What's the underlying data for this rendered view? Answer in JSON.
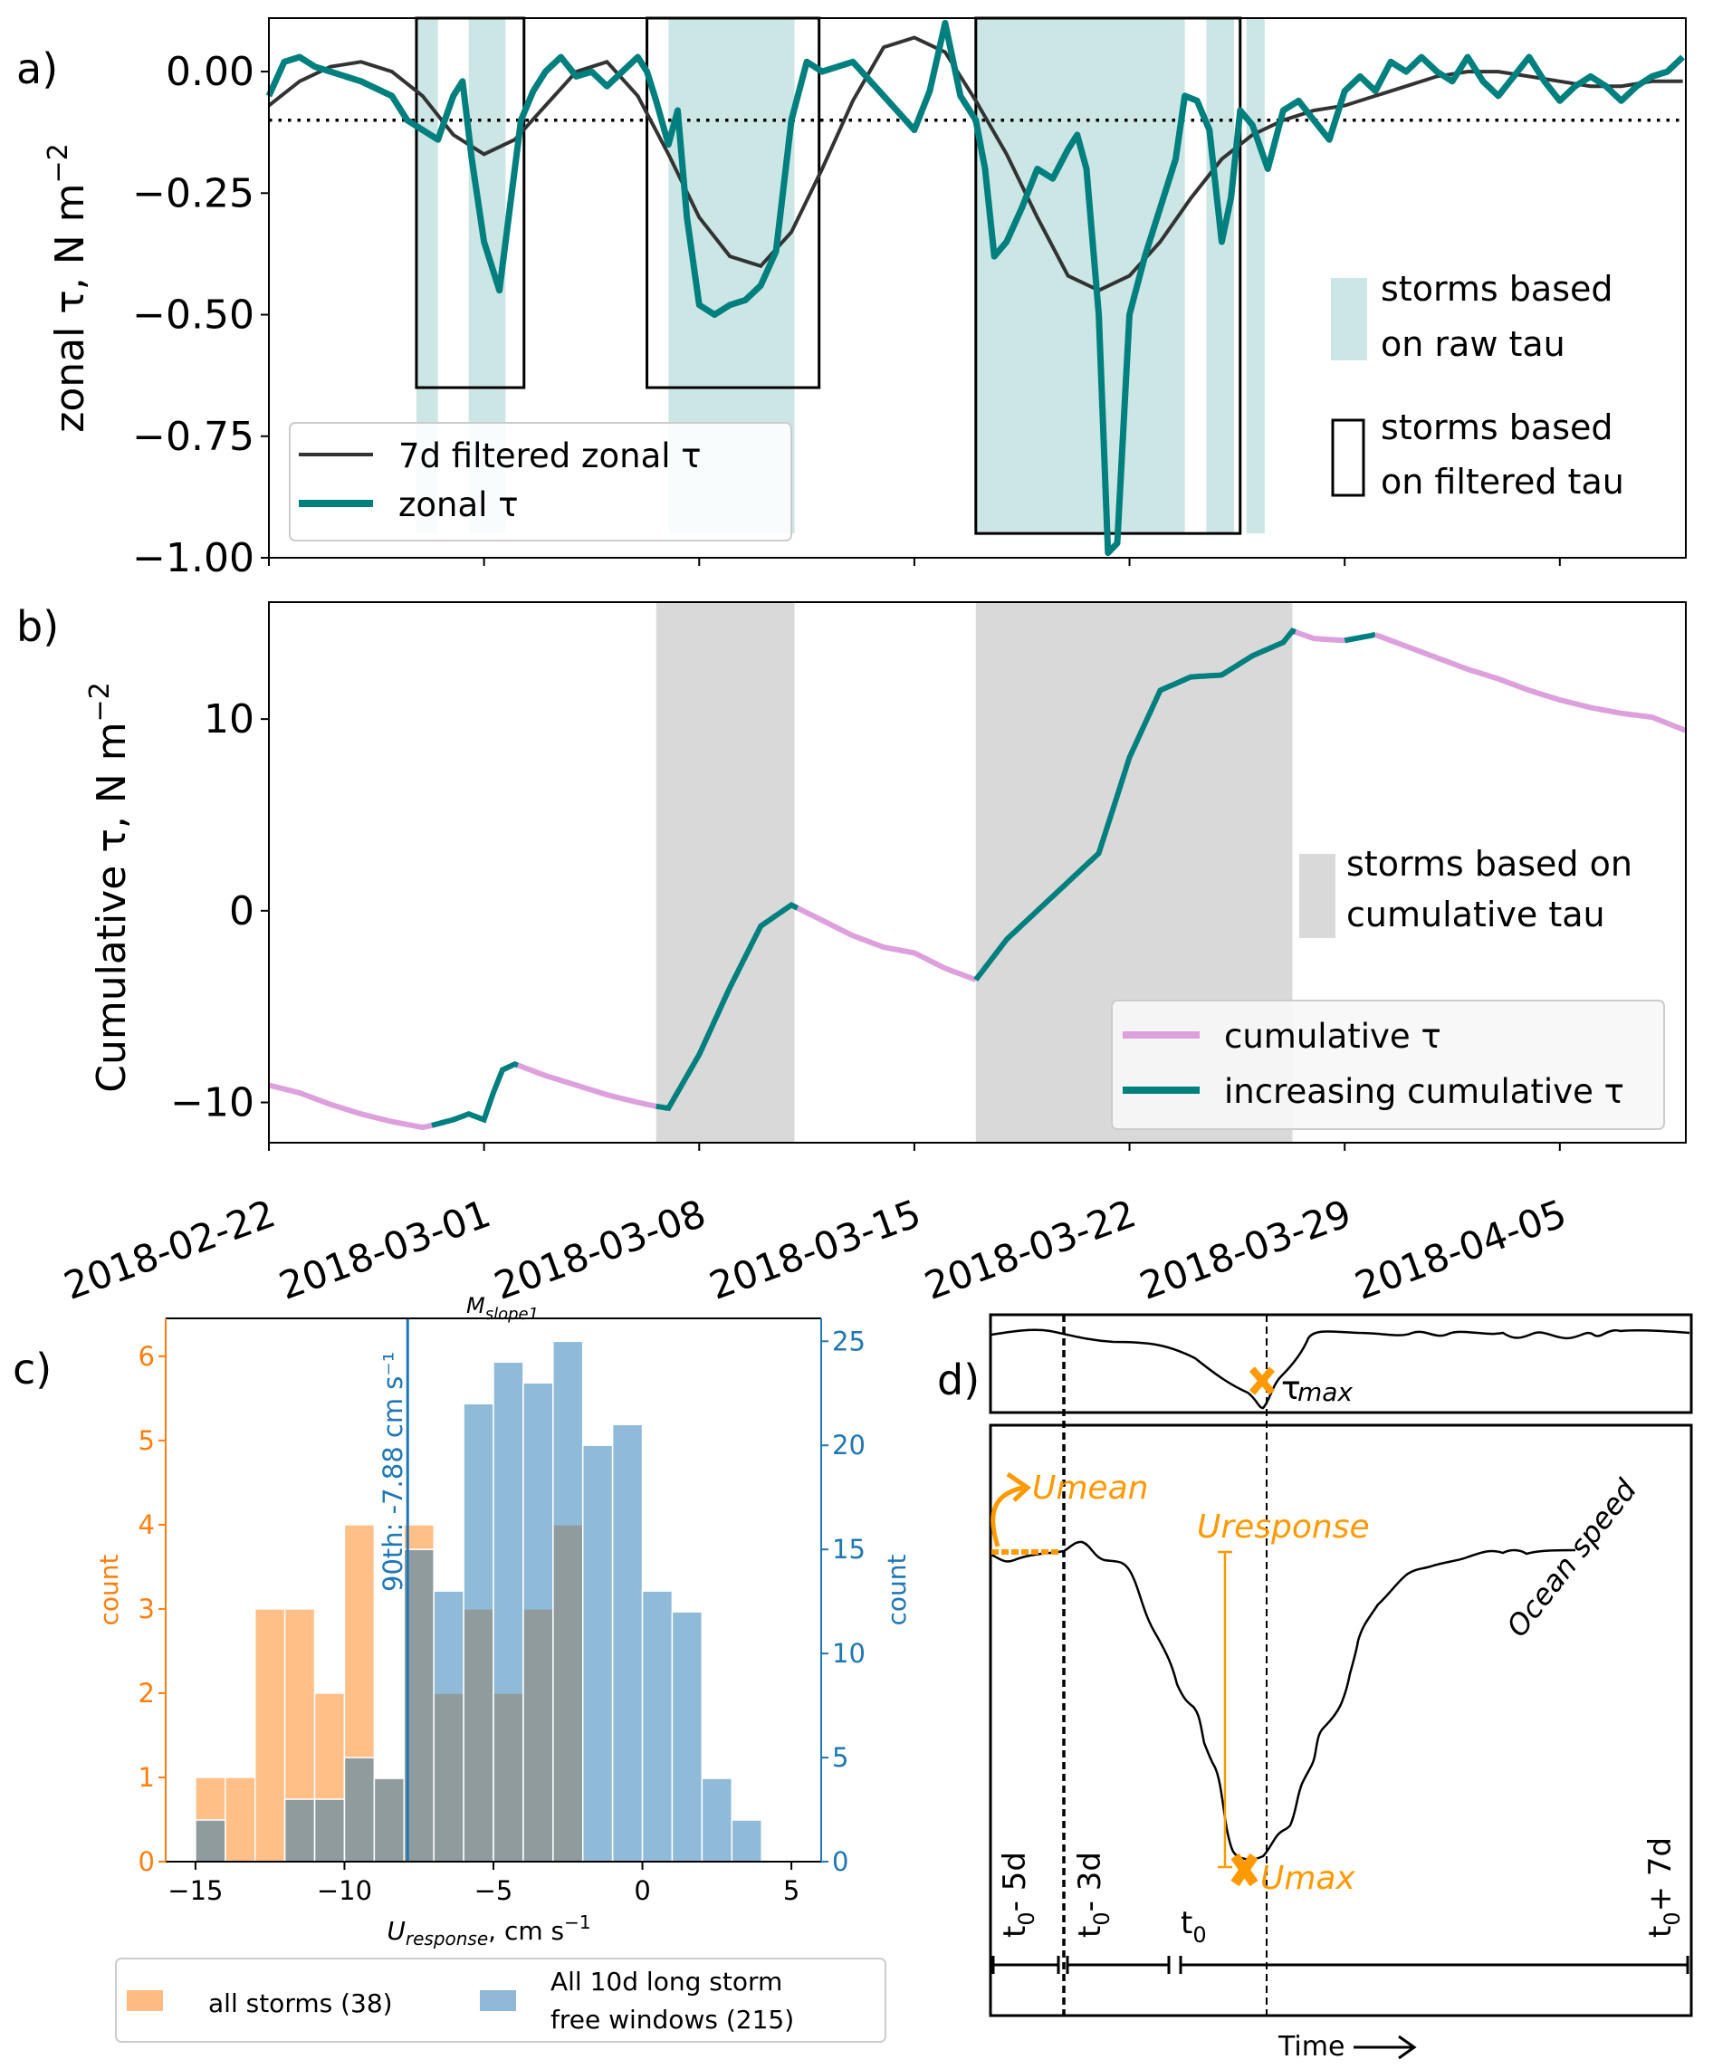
{
  "chart_data": [
    {
      "panel": "a",
      "panel_label": "a)",
      "type": "line",
      "ylabel": "zonal τ, N m⁻²",
      "ylim": [
        -1.0,
        0.11
      ],
      "yticks": [
        0.0,
        -0.25,
        -0.5,
        -0.75,
        -1.0
      ],
      "ytick_labels": [
        "0.00",
        "−0.25",
        "−0.50",
        "−0.75",
        "−1.00"
      ],
      "x_units": "days since 2018-02-22",
      "xlim": [
        0,
        46.1
      ],
      "xticks": [
        0,
        7,
        14,
        21,
        28,
        35,
        42
      ],
      "threshold": -0.1,
      "series": [
        {
          "name": "7d filtered zonal τ",
          "color": "#333333",
          "x": [
            0,
            1,
            2,
            3,
            4,
            5,
            6,
            7,
            8,
            9,
            10,
            11,
            12,
            13,
            14,
            15,
            16,
            17,
            18,
            19,
            20,
            21,
            22,
            23,
            24,
            25,
            26,
            27,
            28,
            29,
            30,
            31,
            32,
            33,
            34,
            35,
            36,
            37,
            38,
            39,
            40,
            41,
            42,
            43,
            44,
            45,
            46
          ],
          "y": [
            -0.07,
            -0.02,
            0.01,
            0.02,
            0.0,
            -0.05,
            -0.13,
            -0.17,
            -0.14,
            -0.07,
            0.0,
            0.02,
            -0.05,
            -0.17,
            -0.3,
            -0.38,
            -0.4,
            -0.33,
            -0.2,
            -0.06,
            0.05,
            0.07,
            0.04,
            -0.06,
            -0.17,
            -0.3,
            -0.42,
            -0.45,
            -0.42,
            -0.35,
            -0.26,
            -0.18,
            -0.13,
            -0.1,
            -0.08,
            -0.07,
            -0.05,
            -0.03,
            -0.01,
            0.0,
            0.0,
            -0.01,
            -0.02,
            -0.03,
            -0.03,
            -0.02,
            -0.02
          ]
        },
        {
          "name": "zonal τ",
          "color": "#007f7f",
          "x": [
            0,
            0.5,
            1,
            1.5,
            2,
            3,
            4,
            4.5,
            5,
            5.5,
            6,
            6.3,
            6.6,
            7,
            7.5,
            7.8,
            8.2,
            8.6,
            9,
            9.5,
            10,
            10.5,
            11,
            11.5,
            12,
            12.3,
            12.6,
            13,
            13.3,
            13.6,
            14,
            14.5,
            15,
            15.5,
            16,
            16.5,
            17,
            17.5,
            18,
            19,
            20,
            21,
            21.5,
            22,
            22.5,
            23,
            23.3,
            23.6,
            24,
            24.5,
            25,
            25.5,
            26,
            26.3,
            26.6,
            27,
            27.3,
            27.6,
            28,
            28.5,
            29,
            29.5,
            29.8,
            30.2,
            30.6,
            31,
            31.3,
            31.6,
            32,
            32.5,
            33,
            33.5,
            34,
            34.5,
            35,
            35.5,
            36,
            36.5,
            37,
            37.5,
            38,
            38.5,
            39,
            39.5,
            40,
            40.5,
            41,
            41.5,
            42,
            42.5,
            43,
            43.5,
            44,
            44.5,
            45,
            45.5,
            46
          ],
          "y": [
            -0.05,
            0.02,
            0.03,
            0.01,
            0.0,
            -0.02,
            -0.05,
            -0.1,
            -0.12,
            -0.14,
            -0.05,
            -0.02,
            -0.18,
            -0.35,
            -0.45,
            -0.3,
            -0.1,
            -0.04,
            0.0,
            0.03,
            -0.01,
            0.0,
            -0.03,
            0.0,
            0.03,
            0.0,
            -0.06,
            -0.15,
            -0.08,
            -0.3,
            -0.48,
            -0.5,
            -0.48,
            -0.47,
            -0.44,
            -0.37,
            -0.1,
            0.02,
            0.0,
            0.02,
            -0.05,
            -0.12,
            -0.04,
            0.1,
            -0.05,
            -0.1,
            -0.2,
            -0.38,
            -0.35,
            -0.28,
            -0.2,
            -0.22,
            -0.16,
            -0.13,
            -0.2,
            -0.5,
            -0.99,
            -0.97,
            -0.5,
            -0.38,
            -0.28,
            -0.18,
            -0.05,
            -0.06,
            -0.12,
            -0.35,
            -0.26,
            -0.08,
            -0.11,
            -0.2,
            -0.08,
            -0.06,
            -0.1,
            -0.14,
            -0.04,
            -0.01,
            -0.04,
            0.02,
            0.0,
            0.03,
            0.0,
            -0.02,
            0.03,
            -0.02,
            -0.05,
            -0.01,
            0.03,
            -0.02,
            -0.06,
            -0.03,
            -0.01,
            -0.03,
            -0.06,
            -0.03,
            -0.01,
            0.0,
            0.03
          ]
        }
      ],
      "raw_tau_storms_days": [
        [
          4.8,
          5.5
        ],
        [
          6.5,
          7.7
        ],
        [
          13.0,
          17.1
        ],
        [
          23.0,
          29.8
        ],
        [
          30.5,
          31.4
        ],
        [
          31.8,
          32.4
        ]
      ],
      "filtered_tau_storms": [
        {
          "x": [
            4.8,
            8.3
          ],
          "ymin": -0.65
        },
        {
          "x": [
            12.3,
            17.9
          ],
          "ymin": -0.65
        },
        {
          "x": [
            23.0,
            31.6
          ],
          "ymin": -0.95
        }
      ],
      "legend_lines": [
        "7d filtered zonal τ",
        "zonal τ"
      ],
      "legend_lines_position": "lower-left",
      "legend_patches": [
        {
          "line1": "storms based",
          "line2": "on raw tau",
          "color": "#cce6e6"
        },
        {
          "line1": "storms based",
          "line2": "on filtered tau",
          "color": "none"
        }
      ],
      "legend_patches_position": "right"
    },
    {
      "panel": "b",
      "panel_label": "b)",
      "type": "line",
      "ylabel": "Cumulative τ, N m⁻²",
      "ylim": [
        -12.1,
        16.1
      ],
      "yticks": [
        10,
        0,
        -10
      ],
      "ytick_labels": [
        "10",
        "0",
        "−10"
      ],
      "x_units": "days since 2018-02-22",
      "xlim": [
        0,
        46.1
      ],
      "xticks": [
        0,
        7,
        14,
        21,
        28,
        35,
        42
      ],
      "xtick_labels": [
        "2018-02-22",
        "2018-03-01",
        "2018-03-08",
        "2018-03-15",
        "2018-03-22",
        "2018-03-29",
        "2018-04-05"
      ],
      "x": [
        0,
        1,
        2,
        3,
        4,
        5,
        5.3,
        6,
        6.5,
        7,
        7.3,
        7.6,
        8,
        9,
        10,
        11,
        12,
        12.6,
        13,
        14,
        15,
        16,
        17,
        18,
        19,
        20,
        21,
        22,
        23,
        24,
        25,
        26,
        27,
        28,
        29,
        30,
        31,
        32,
        33,
        33.3,
        34,
        35,
        36,
        37,
        38,
        39,
        40,
        41,
        42,
        43,
        44,
        45,
        46.1
      ],
      "y": [
        -9.1,
        -9.5,
        -10.1,
        -10.6,
        -11.0,
        -11.3,
        -11.2,
        -10.9,
        -10.6,
        -10.9,
        -9.5,
        -8.3,
        -8.0,
        -8.6,
        -9.1,
        -9.6,
        -10.0,
        -10.2,
        -10.3,
        -7.5,
        -4.0,
        -0.8,
        0.3,
        -0.5,
        -1.3,
        -1.9,
        -2.2,
        -3.0,
        -3.6,
        -1.5,
        0.0,
        1.5,
        3.0,
        8.0,
        11.5,
        12.2,
        12.3,
        13.3,
        14.0,
        14.6,
        14.2,
        14.1,
        14.4,
        13.8,
        13.2,
        12.6,
        12.1,
        11.5,
        11.0,
        10.6,
        10.3,
        10.1,
        9.4
      ],
      "increasing_segments_days": [
        [
          5.3,
          8.0
        ],
        [
          12.6,
          17.1
        ],
        [
          23.0,
          33.3
        ],
        [
          35.0,
          35.9
        ]
      ],
      "series_colors": {
        "cumulative τ": "#dda0dd",
        "increasing cumulative τ": "#007f7f"
      },
      "cumulative_storms_days": [
        [
          12.6,
          17.1
        ],
        [
          23.0,
          33.3
        ]
      ],
      "legend_patch": {
        "line1": "storms based on",
        "line2": "cumulative tau",
        "color": "#d9d9d9"
      },
      "legend_lines": [
        "cumulative τ",
        "increasing cumulative τ"
      ],
      "legend_position": "lower-right"
    },
    {
      "panel": "c",
      "panel_label": "c)",
      "type": "bar",
      "title": "M_slope1",
      "title_main": "M",
      "title_sub": "slope1",
      "xlabel_main": "U",
      "xlabel_sub": "response",
      "xlabel_rest": ", cm s",
      "xlabel_sup": "−1",
      "xlim": [
        -16,
        6
      ],
      "xticks": [
        -15,
        -10,
        -5,
        0,
        5
      ],
      "xtick_labels": [
        "−15",
        "−10",
        "−5",
        "0",
        "5"
      ],
      "bin_edges": [
        -15,
        -14,
        -13,
        -12,
        -11,
        -10,
        -9,
        -8,
        -7,
        -6,
        -5,
        -4,
        -3,
        -2,
        -1,
        0,
        1,
        2,
        3,
        4
      ],
      "series": [
        {
          "name": "all storms (38)",
          "axis": "left",
          "color": "#ffbb80",
          "values": [
            1,
            1,
            3,
            3,
            2,
            4,
            1,
            4,
            2,
            3,
            2,
            3,
            4,
            0,
            0,
            0,
            0,
            0,
            0
          ]
        },
        {
          "name": "All 10d long storm free windows (215)",
          "axis": "right",
          "color": "#8fb8d9",
          "values": [
            2,
            0,
            0,
            3,
            3,
            5,
            4,
            15,
            13,
            22,
            24,
            23,
            25,
            20,
            21,
            13,
            12,
            4,
            2
          ]
        }
      ],
      "ylabel_left": "count",
      "ylim_left": [
        0,
        6.45
      ],
      "yticks_left": [
        0,
        1,
        2,
        3,
        4,
        5,
        6
      ],
      "ylabel_right": "count",
      "ylim_right": [
        0,
        26.1
      ],
      "yticks_right": [
        0,
        5,
        10,
        15,
        20,
        25
      ],
      "left_axis_color": "#ff7f0e",
      "right_axis_color": "#1f77b4",
      "vline": {
        "x": -7.88,
        "label": "90th: -7.88 cm s⁻¹",
        "color": "#1f77b4"
      },
      "legend": [
        {
          "line1": "all storms (38)",
          "line2": "",
          "color": "#ffbb80"
        },
        {
          "line1": "All 10d long storm",
          "line2": "free windows (215)",
          "color": "#8fb8d9"
        }
      ],
      "legend_position": "bottom"
    }
  ],
  "diagram_d": {
    "panel_label": "d)",
    "tau_max_label": "τ",
    "tau_max_sub": "max",
    "umean_label": "Umean",
    "uresponse_label": "Uresponse",
    "umax_label": "Umax",
    "ocean_speed_label": "Ocean speed",
    "time_labels": [
      {
        "main": "t",
        "sub": "0",
        "rest": "- 5d"
      },
      {
        "main": "t",
        "sub": "0",
        "rest": "- 3d"
      },
      {
        "main": "t",
        "sub": "0",
        "rest": ""
      },
      {
        "main": "t",
        "sub": "0",
        "rest": "+ 7d"
      }
    ],
    "time_axis_label": "Time",
    "accent_color": "#ff9900"
  }
}
